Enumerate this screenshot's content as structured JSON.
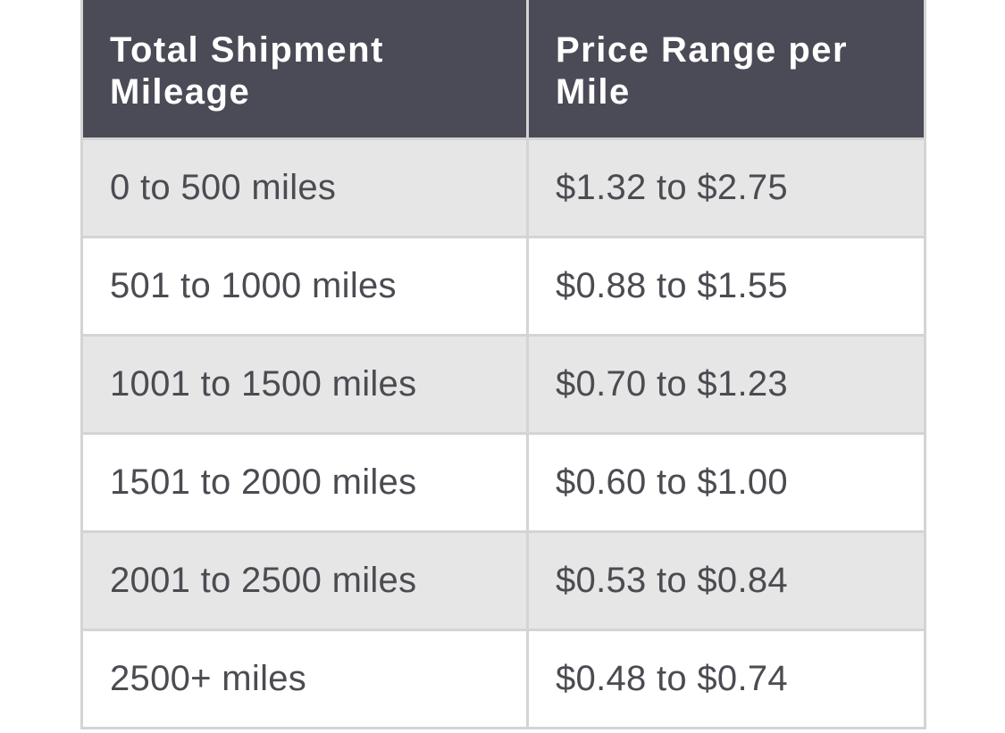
{
  "table": {
    "headers": [
      "Total Shipment Mileage",
      "Price Range per Mile"
    ],
    "rows": [
      [
        "0 to 500 miles",
        "$1.32 to $2.75"
      ],
      [
        "501 to 1000 miles",
        "$0.88 to $1.55"
      ],
      [
        "1001 to 1500 miles",
        "$0.70 to $1.23"
      ],
      [
        "1501 to 2000 miles",
        "$0.60 to $1.00"
      ],
      [
        "2001 to 2500 miles",
        "$0.53 to $0.84"
      ],
      [
        "2500+ miles",
        "$0.48 to $0.74"
      ]
    ],
    "colors": {
      "header_bg": "#4a4b56",
      "header_text": "#ffffff",
      "row_alt_bg": "#e6e6e6",
      "row_bg": "#ffffff",
      "cell_text": "#4b4b52",
      "border": "#d4d4d4"
    }
  }
}
